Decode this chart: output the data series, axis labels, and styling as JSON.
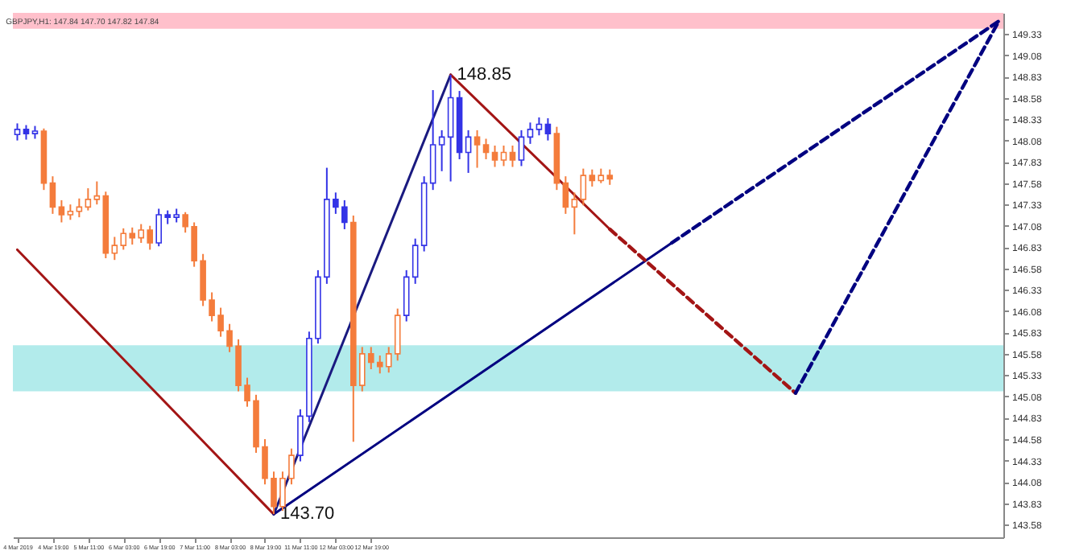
{
  "chart_data": {
    "type": "candlestick",
    "title": "GBPJPY,H1: 147.84 147.70 147.82 147.84",
    "categories": [
      "4 Mar 2019",
      null,
      null,
      null,
      "4 Mar 19:00",
      null,
      null,
      null,
      "5 Mar 11:00",
      null,
      null,
      null,
      "6 Mar 03:00",
      null,
      null,
      null,
      "6 Mar 19:00",
      null,
      null,
      null,
      "7 Mar 11:00",
      null,
      null,
      null,
      "8 Mar 03:00",
      null,
      null,
      null,
      "8 Mar 19:00",
      null,
      null,
      null,
      "11 Mar 11:00",
      null,
      null,
      null,
      "12 Mar 03:00",
      null,
      null,
      null,
      "12 Mar 19:00",
      null,
      null,
      null,
      null,
      null,
      null,
      null,
      null,
      null,
      null,
      null,
      null,
      null,
      null,
      null,
      null,
      null,
      null,
      null,
      null,
      null,
      null,
      null,
      null,
      null,
      null,
      null,
      null,
      null,
      null,
      null,
      null,
      null,
      null,
      null,
      null,
      null,
      null,
      null,
      null,
      null,
      null,
      null,
      null,
      null,
      null,
      null,
      null,
      null,
      null,
      null,
      null,
      null,
      null,
      null,
      null,
      null,
      null,
      null,
      null,
      null,
      null,
      null,
      null,
      null,
      null,
      null,
      null,
      null,
      null,
      null
    ],
    "ohlc": [
      [
        148.15,
        148.28,
        148.08,
        148.21
      ],
      [
        148.21,
        148.26,
        148.09,
        148.16
      ],
      [
        148.16,
        148.25,
        148.1,
        148.19
      ],
      [
        148.19,
        148.22,
        147.5,
        147.58
      ],
      [
        147.58,
        147.66,
        147.22,
        147.3
      ],
      [
        147.3,
        147.38,
        147.12,
        147.21
      ],
      [
        147.21,
        147.33,
        147.15,
        147.25
      ],
      [
        147.25,
        147.4,
        147.18,
        147.3
      ],
      [
        147.3,
        147.52,
        147.26,
        147.39
      ],
      [
        147.39,
        147.6,
        147.33,
        147.43
      ],
      [
        147.43,
        147.48,
        146.7,
        146.76
      ],
      [
        146.76,
        146.95,
        146.68,
        146.85
      ],
      [
        146.85,
        147.05,
        146.8,
        146.99
      ],
      [
        146.99,
        147.06,
        146.86,
        146.94
      ],
      [
        146.94,
        147.1,
        146.88,
        147.03
      ],
      [
        147.03,
        147.08,
        146.8,
        146.88
      ],
      [
        146.88,
        147.28,
        146.84,
        147.21
      ],
      [
        147.21,
        147.26,
        147.1,
        147.18
      ],
      [
        147.18,
        147.28,
        147.12,
        147.21
      ],
      [
        147.21,
        147.24,
        147.0,
        147.07
      ],
      [
        147.07,
        147.12,
        146.6,
        146.67
      ],
      [
        146.67,
        146.75,
        146.14,
        146.21
      ],
      [
        146.21,
        146.3,
        145.96,
        146.03
      ],
      [
        146.03,
        146.12,
        145.78,
        145.85
      ],
      [
        145.85,
        145.93,
        145.6,
        145.67
      ],
      [
        145.67,
        145.75,
        145.14,
        145.21
      ],
      [
        145.21,
        145.3,
        144.96,
        145.03
      ],
      [
        145.03,
        145.1,
        144.42,
        144.49
      ],
      [
        144.49,
        144.58,
        144.05,
        144.12
      ],
      [
        144.12,
        144.2,
        143.7,
        143.79
      ],
      [
        143.79,
        144.2,
        143.74,
        144.12
      ],
      [
        144.12,
        144.47,
        144.05,
        144.39
      ],
      [
        144.39,
        144.93,
        144.32,
        144.85
      ],
      [
        144.85,
        145.84,
        144.78,
        145.76
      ],
      [
        145.76,
        146.56,
        145.7,
        146.48
      ],
      [
        146.48,
        147.76,
        146.4,
        147.39
      ],
      [
        147.39,
        147.47,
        147.22,
        147.3
      ],
      [
        147.3,
        147.38,
        147.04,
        147.12
      ],
      [
        147.12,
        147.2,
        144.55,
        145.21
      ],
      [
        145.21,
        145.66,
        145.14,
        145.58
      ],
      [
        145.58,
        145.66,
        145.4,
        145.48
      ],
      [
        145.48,
        145.56,
        145.35,
        145.43
      ],
      [
        145.43,
        145.66,
        145.36,
        145.58
      ],
      [
        145.58,
        146.11,
        145.5,
        146.03
      ],
      [
        146.03,
        146.56,
        145.96,
        146.48
      ],
      [
        146.48,
        146.93,
        146.4,
        146.85
      ],
      [
        146.85,
        147.66,
        146.78,
        147.58
      ],
      [
        147.58,
        148.67,
        147.5,
        148.03
      ],
      [
        148.03,
        148.2,
        147.72,
        148.12
      ],
      [
        148.12,
        148.85,
        147.6,
        148.58
      ],
      [
        148.58,
        148.66,
        147.86,
        147.94
      ],
      [
        147.94,
        148.2,
        147.7,
        148.12
      ],
      [
        148.12,
        148.2,
        147.76,
        148.03
      ],
      [
        148.03,
        148.1,
        147.86,
        147.94
      ],
      [
        147.94,
        148.02,
        147.77,
        147.85
      ],
      [
        147.85,
        148.02,
        147.78,
        147.94
      ],
      [
        147.94,
        148.02,
        147.77,
        147.85
      ],
      [
        147.85,
        148.2,
        147.78,
        148.12
      ],
      [
        148.12,
        148.29,
        148.04,
        148.21
      ],
      [
        148.21,
        148.35,
        148.14,
        148.27
      ],
      [
        148.27,
        148.34,
        148.08,
        148.16
      ],
      [
        148.16,
        148.24,
        147.5,
        147.58
      ],
      [
        147.58,
        147.66,
        147.22,
        147.3
      ],
      [
        147.3,
        147.47,
        146.98,
        147.39
      ],
      [
        147.39,
        147.75,
        147.32,
        147.67
      ],
      [
        147.67,
        147.74,
        147.54,
        147.61
      ],
      [
        147.61,
        147.75,
        147.58,
        147.67
      ],
      [
        147.67,
        147.74,
        147.56,
        147.63
      ],
      null,
      null,
      null,
      null,
      null,
      null,
      null,
      null,
      null,
      null,
      null,
      null,
      null,
      null,
      null,
      null,
      null,
      null,
      null,
      null,
      null,
      null,
      null,
      null,
      null,
      null,
      null,
      null,
      null,
      null,
      null,
      null,
      null,
      null,
      null,
      null,
      null,
      null,
      null,
      null,
      null,
      null,
      null,
      null
    ],
    "colors": [
      "#3333e6",
      "#3333e6",
      "#3333e6",
      "#f47c3c",
      "#f47c3c",
      "#f47c3c",
      "#f47c3c",
      "#f47c3c",
      "#f47c3c",
      "#f47c3c",
      "#f47c3c",
      "#f47c3c",
      "#f47c3c",
      "#f47c3c",
      "#f47c3c",
      "#f47c3c",
      "#3333e6",
      "#3333e6",
      "#3333e6",
      "#f47c3c",
      "#f47c3c",
      "#f47c3c",
      "#f47c3c",
      "#f47c3c",
      "#f47c3c",
      "#f47c3c",
      "#f47c3c",
      "#f47c3c",
      "#f47c3c",
      "#f47c3c",
      "#f47c3c",
      "#f47c3c",
      "#3333e6",
      "#3333e6",
      "#3333e6",
      "#3333e6",
      "#3333e6",
      "#3333e6",
      "#f47c3c",
      "#f47c3c",
      "#f47c3c",
      "#f47c3c",
      "#f47c3c",
      "#f47c3c",
      "#3333e6",
      "#3333e6",
      "#3333e6",
      "#3333e6",
      "#3333e6",
      "#3333e6",
      "#3333e6",
      "#3333e6",
      "#f47c3c",
      "#f47c3c",
      "#f47c3c",
      "#f47c3c",
      "#f47c3c",
      "#3333e6",
      "#3333e6",
      "#3333e6",
      "#3333e6",
      "#f47c3c",
      "#f47c3c",
      "#f47c3c",
      "#f47c3c",
      "#f47c3c",
      "#f47c3c",
      "#f47c3c",
      null,
      null,
      null,
      null,
      null,
      null,
      null,
      null,
      null,
      null,
      null,
      null,
      null,
      null,
      null,
      null,
      null,
      null,
      null,
      null,
      null,
      null,
      null,
      null,
      null,
      null,
      null,
      null,
      null,
      null,
      null,
      null,
      null,
      null,
      null,
      null,
      null,
      null,
      null,
      null,
      null,
      null,
      null,
      null
    ],
    "series": [
      {
        "type": "line",
        "color": "#a31515",
        "line_style": "solid",
        "values": [
          146.8,
          null,
          null,
          null,
          null,
          null,
          null,
          null,
          null,
          null,
          null,
          null,
          null,
          null,
          null,
          null,
          null,
          null,
          null,
          null,
          null,
          null,
          null,
          null,
          null,
          null,
          null,
          null,
          null,
          143.7,
          null,
          null,
          null,
          null,
          null,
          null,
          null,
          null,
          null,
          null,
          null,
          null,
          null,
          null,
          null,
          null,
          null,
          null,
          null,
          null,
          null,
          null,
          null,
          null,
          null,
          null,
          null,
          null,
          null,
          null,
          null,
          null,
          null,
          null,
          null,
          null,
          null,
          null,
          null,
          null,
          null,
          null,
          null,
          null,
          null,
          null,
          null,
          null,
          null,
          null,
          null,
          null,
          null,
          null,
          null,
          null,
          null,
          null,
          null,
          null,
          null,
          null,
          null,
          null,
          null,
          null,
          null,
          null,
          null,
          null,
          null,
          null,
          null,
          null,
          null,
          null,
          null,
          null,
          null,
          null,
          null,
          null
        ]
      },
      {
        "type": "line",
        "color": "#1a1a80",
        "line_style": "solid",
        "values": [
          null,
          null,
          null,
          null,
          null,
          null,
          null,
          null,
          null,
          null,
          null,
          null,
          null,
          null,
          null,
          null,
          null,
          null,
          null,
          null,
          null,
          null,
          null,
          null,
          null,
          null,
          null,
          null,
          null,
          143.7,
          null,
          null,
          null,
          null,
          null,
          null,
          null,
          null,
          null,
          null,
          null,
          null,
          null,
          null,
          null,
          null,
          null,
          null,
          null,
          148.85,
          null,
          null,
          null,
          null,
          null,
          null,
          null,
          null,
          null,
          null,
          null,
          null,
          null,
          null,
          null,
          null,
          null,
          null,
          null,
          null,
          null,
          null,
          null,
          null,
          null,
          null,
          null,
          null,
          null,
          null,
          null,
          null,
          null,
          null,
          null,
          null,
          null,
          null,
          null,
          null,
          null,
          null,
          null,
          null,
          null,
          null,
          null,
          null,
          null,
          null,
          null,
          null,
          null,
          null,
          null,
          null,
          null,
          null,
          null,
          null,
          null,
          null
        ],
        "value_labels": [
          null,
          null,
          null,
          null,
          null,
          null,
          null,
          null,
          null,
          null,
          null,
          null,
          null,
          null,
          null,
          null,
          null,
          null,
          null,
          null,
          null,
          null,
          null,
          null,
          null,
          null,
          null,
          null,
          null,
          "143.70",
          null,
          null,
          null,
          null,
          null,
          null,
          null,
          null,
          null,
          null,
          null,
          null,
          null,
          null,
          null,
          null,
          null,
          null,
          null,
          "148.85",
          null,
          null,
          null,
          null,
          null,
          null,
          null,
          null,
          null,
          null,
          null,
          null,
          null,
          null,
          null,
          null,
          null,
          null,
          null,
          null,
          null,
          null,
          null,
          null,
          null,
          null,
          null,
          null,
          null,
          null,
          null,
          null,
          null,
          null,
          null,
          null,
          null,
          null,
          null,
          null,
          null,
          null,
          null,
          null,
          null,
          null,
          null,
          null,
          null,
          null,
          null,
          null,
          null,
          null,
          null,
          null,
          null,
          null,
          null,
          null,
          null,
          null
        ]
      },
      {
        "type": "line",
        "color": "#000080",
        "line_style": "solid",
        "values": [
          null,
          null,
          null,
          null,
          null,
          null,
          null,
          null,
          null,
          null,
          null,
          null,
          null,
          null,
          null,
          null,
          null,
          null,
          null,
          null,
          null,
          null,
          null,
          null,
          null,
          null,
          null,
          null,
          null,
          143.7,
          null,
          null,
          null,
          null,
          null,
          null,
          null,
          null,
          null,
          null,
          null,
          null,
          null,
          null,
          null,
          null,
          null,
          null,
          null,
          null,
          null,
          null,
          null,
          null,
          null,
          null,
          null,
          null,
          null,
          null,
          null,
          null,
          null,
          null,
          null,
          null,
          null,
          null,
          null,
          null,
          null,
          null,
          null,
          null,
          146.88,
          null,
          null,
          null,
          null,
          null,
          null,
          null,
          null,
          null,
          null,
          null,
          null,
          null,
          null,
          null,
          null,
          null,
          null,
          null,
          null,
          null,
          null,
          null,
          null,
          null,
          null,
          null,
          null,
          null,
          null,
          null,
          null,
          null,
          null,
          null,
          null,
          null
        ]
      },
      {
        "type": "line",
        "color": "#000080",
        "line_style": "dashed",
        "values": [
          null,
          null,
          null,
          null,
          null,
          null,
          null,
          null,
          null,
          null,
          null,
          null,
          null,
          null,
          null,
          null,
          null,
          null,
          null,
          null,
          null,
          null,
          null,
          null,
          null,
          null,
          null,
          null,
          null,
          null,
          null,
          null,
          null,
          null,
          null,
          null,
          null,
          null,
          null,
          null,
          null,
          null,
          null,
          null,
          null,
          null,
          null,
          null,
          null,
          null,
          null,
          null,
          null,
          null,
          null,
          null,
          null,
          null,
          null,
          null,
          null,
          null,
          null,
          null,
          null,
          null,
          null,
          null,
          null,
          null,
          null,
          null,
          null,
          null,
          146.88,
          null,
          null,
          null,
          null,
          null,
          null,
          null,
          null,
          null,
          null,
          null,
          null,
          null,
          null,
          null,
          null,
          null,
          null,
          null,
          null,
          null,
          null,
          null,
          null,
          null,
          null,
          null,
          null,
          null,
          null,
          null,
          null,
          null,
          null,
          null,
          null,
          149.48
        ]
      },
      {
        "type": "line",
        "color": "#a31515",
        "line_style": "solid",
        "values": [
          null,
          null,
          null,
          null,
          null,
          null,
          null,
          null,
          null,
          null,
          null,
          null,
          null,
          null,
          null,
          null,
          null,
          null,
          null,
          null,
          null,
          null,
          null,
          null,
          null,
          null,
          null,
          null,
          null,
          null,
          null,
          null,
          null,
          null,
          null,
          null,
          null,
          null,
          null,
          null,
          null,
          null,
          null,
          null,
          null,
          null,
          null,
          null,
          null,
          148.85,
          null,
          null,
          null,
          null,
          null,
          null,
          null,
          null,
          null,
          null,
          null,
          null,
          null,
          null,
          null,
          null,
          null,
          147.04,
          null,
          null,
          null,
          null,
          null,
          null,
          null,
          null,
          null,
          null,
          null,
          null,
          null,
          null,
          null,
          null,
          null,
          null,
          null,
          null,
          null,
          null,
          null,
          null,
          null,
          null,
          null,
          null,
          null,
          null,
          null,
          null,
          null,
          null,
          null,
          null,
          null,
          null,
          null,
          null,
          null,
          null,
          null,
          null
        ]
      },
      {
        "type": "line",
        "color": "#a31515",
        "line_style": "dashed",
        "values": [
          null,
          null,
          null,
          null,
          null,
          null,
          null,
          null,
          null,
          null,
          null,
          null,
          null,
          null,
          null,
          null,
          null,
          null,
          null,
          null,
          null,
          null,
          null,
          null,
          null,
          null,
          null,
          null,
          null,
          null,
          null,
          null,
          null,
          null,
          null,
          null,
          null,
          null,
          null,
          null,
          null,
          null,
          null,
          null,
          null,
          null,
          null,
          null,
          null,
          null,
          null,
          null,
          null,
          null,
          null,
          null,
          null,
          null,
          null,
          null,
          null,
          null,
          null,
          null,
          null,
          null,
          null,
          147.04,
          null,
          null,
          null,
          null,
          null,
          null,
          null,
          null,
          null,
          null,
          null,
          null,
          null,
          null,
          null,
          null,
          null,
          null,
          null,
          null,
          145.12,
          null,
          null,
          null,
          null,
          null,
          null,
          null,
          null,
          null,
          null,
          null,
          null,
          null,
          null,
          null,
          null,
          null,
          null,
          null,
          null,
          null,
          null,
          null
        ]
      },
      {
        "type": "line",
        "color": "#000080",
        "line_style": "dashed",
        "values": [
          null,
          null,
          null,
          null,
          null,
          null,
          null,
          null,
          null,
          null,
          null,
          null,
          null,
          null,
          null,
          null,
          null,
          null,
          null,
          null,
          null,
          null,
          null,
          null,
          null,
          null,
          null,
          null,
          null,
          null,
          null,
          null,
          null,
          null,
          null,
          null,
          null,
          null,
          null,
          null,
          null,
          null,
          null,
          null,
          null,
          null,
          null,
          null,
          null,
          null,
          null,
          null,
          null,
          null,
          null,
          null,
          null,
          null,
          null,
          null,
          null,
          null,
          null,
          null,
          null,
          null,
          null,
          null,
          null,
          null,
          null,
          null,
          null,
          null,
          null,
          null,
          null,
          null,
          null,
          null,
          null,
          null,
          null,
          null,
          null,
          null,
          null,
          null,
          145.12,
          null,
          null,
          null,
          null,
          null,
          null,
          null,
          null,
          null,
          null,
          null,
          null,
          null,
          null,
          null,
          null,
          null,
          null,
          null,
          null,
          null,
          null,
          149.48
        ]
      }
    ],
    "bands": [
      {
        "axis": "y",
        "from": 145.14,
        "to": 145.68,
        "color": "#b2ebeb"
      },
      {
        "axis": "y",
        "from": 149.39,
        "to": 149.575,
        "color": "#ffc0cb"
      }
    ],
    "ylim": [
      143.43,
      149.575
    ],
    "yticks": [
      143.58,
      143.83,
      144.08,
      144.33,
      144.58,
      144.83,
      145.08,
      145.33,
      145.58,
      145.83,
      146.08,
      146.33,
      146.58,
      146.83,
      147.08,
      147.33,
      147.58,
      147.83,
      148.08,
      148.33,
      148.58,
      148.83,
      149.08,
      149.33
    ]
  }
}
